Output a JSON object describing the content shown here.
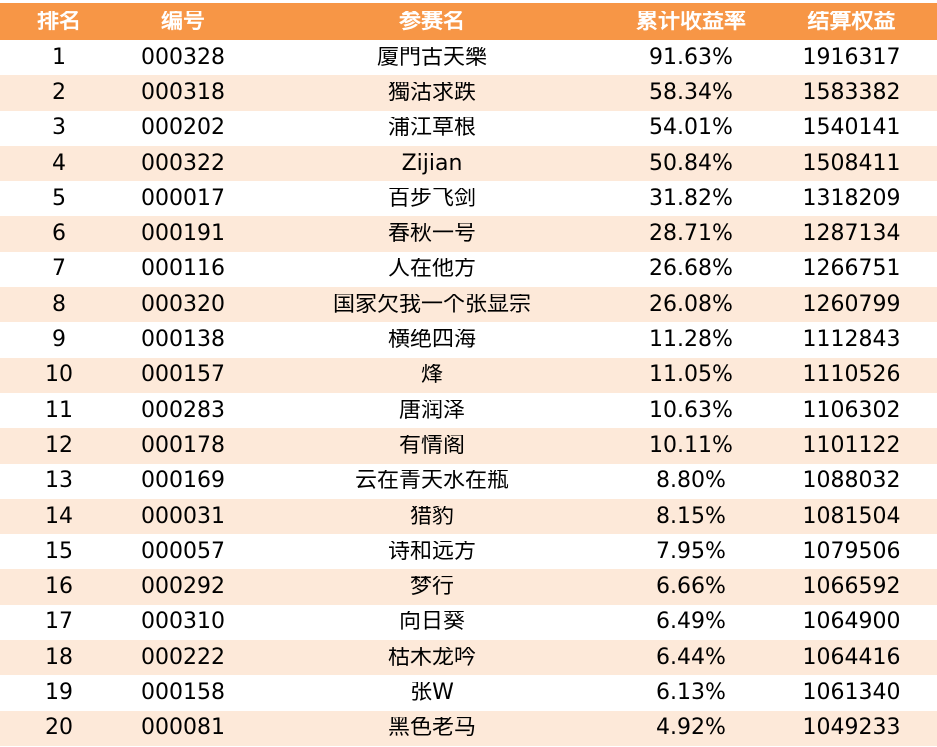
{
  "table": {
    "headers": {
      "rank": "排名",
      "id": "编号",
      "name": "参赛名",
      "return": "累计收益率",
      "equity": "结算权益"
    },
    "rows": [
      {
        "rank": "1",
        "id": "000328",
        "name": "廈門古天樂",
        "return": "91.63%",
        "equity": "1916317"
      },
      {
        "rank": "2",
        "id": "000318",
        "name": "獨沽求跌",
        "return": "58.34%",
        "equity": "1583382"
      },
      {
        "rank": "3",
        "id": "000202",
        "name": "浦江草根",
        "return": "54.01%",
        "equity": "1540141"
      },
      {
        "rank": "4",
        "id": "000322",
        "name": "Zijian",
        "return": "50.84%",
        "equity": "1508411"
      },
      {
        "rank": "5",
        "id": "000017",
        "name": "百步飞剑",
        "return": "31.82%",
        "equity": "1318209"
      },
      {
        "rank": "6",
        "id": "000191",
        "name": "春秋一号",
        "return": "28.71%",
        "equity": "1287134"
      },
      {
        "rank": "7",
        "id": "000116",
        "name": "人在他方",
        "return": "26.68%",
        "equity": "1266751"
      },
      {
        "rank": "8",
        "id": "000320",
        "name": "国家欠我一个张显宗",
        "return": "26.08%",
        "equity": "1260799"
      },
      {
        "rank": "9",
        "id": "000138",
        "name": "横绝四海",
        "return": "11.28%",
        "equity": "1112843"
      },
      {
        "rank": "10",
        "id": "000157",
        "name": "烽",
        "return": "11.05%",
        "equity": "1110526"
      },
      {
        "rank": "11",
        "id": "000283",
        "name": "唐润泽",
        "return": "10.63%",
        "equity": "1106302"
      },
      {
        "rank": "12",
        "id": "000178",
        "name": "有情阁",
        "return": "10.11%",
        "equity": "1101122"
      },
      {
        "rank": "13",
        "id": "000169",
        "name": "云在青天水在瓶",
        "return": "8.80%",
        "equity": "1088032"
      },
      {
        "rank": "14",
        "id": "000031",
        "name": "猎豹",
        "return": "8.15%",
        "equity": "1081504"
      },
      {
        "rank": "15",
        "id": "000057",
        "name": "诗和远方",
        "return": "7.95%",
        "equity": "1079506"
      },
      {
        "rank": "16",
        "id": "000292",
        "name": "梦行",
        "return": "6.66%",
        "equity": "1066592"
      },
      {
        "rank": "17",
        "id": "000310",
        "name": "向日葵",
        "return": "6.49%",
        "equity": "1064900"
      },
      {
        "rank": "18",
        "id": "000222",
        "name": "枯木龙吟",
        "return": "6.44%",
        "equity": "1064416"
      },
      {
        "rank": "19",
        "id": "000158",
        "name": "张W",
        "return": "6.13%",
        "equity": "1061340"
      },
      {
        "rank": "20",
        "id": "000081",
        "name": "黑色老马",
        "return": "4.92%",
        "equity": "1049233"
      }
    ]
  },
  "colors": {
    "header_bg": "#f79646",
    "header_text": "#ffffff",
    "alt_row_bg": "#fde9d9",
    "row_bg": "#ffffff"
  }
}
